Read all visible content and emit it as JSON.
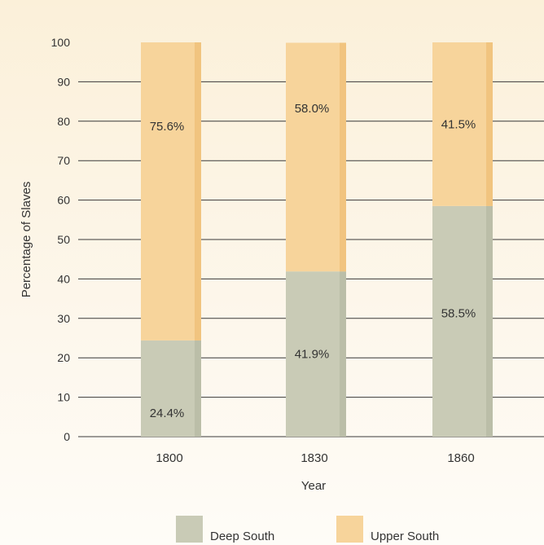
{
  "chart_data": {
    "type": "bar",
    "stacked": true,
    "categories": [
      "1800",
      "1830",
      "1860"
    ],
    "series": [
      {
        "name": "Deep South",
        "values": [
          24.4,
          41.9,
          58.5
        ],
        "labels": [
          "24.4%",
          "41.9%",
          "58.5%"
        ],
        "color": "#c9cbb6"
      },
      {
        "name": "Upper South",
        "values": [
          75.6,
          58.0,
          41.5
        ],
        "labels": [
          "75.6%",
          "58.0%",
          "41.5%"
        ],
        "color": "#f7d49b"
      }
    ],
    "xlabel": "Year",
    "ylabel": "Percentage of Slaves",
    "ylim": [
      0,
      100
    ],
    "yticks": [
      "0",
      "10",
      "20",
      "30",
      "40",
      "50",
      "60",
      "70",
      "80",
      "90",
      "100"
    ],
    "grid": true,
    "legend": "bottom-center"
  }
}
